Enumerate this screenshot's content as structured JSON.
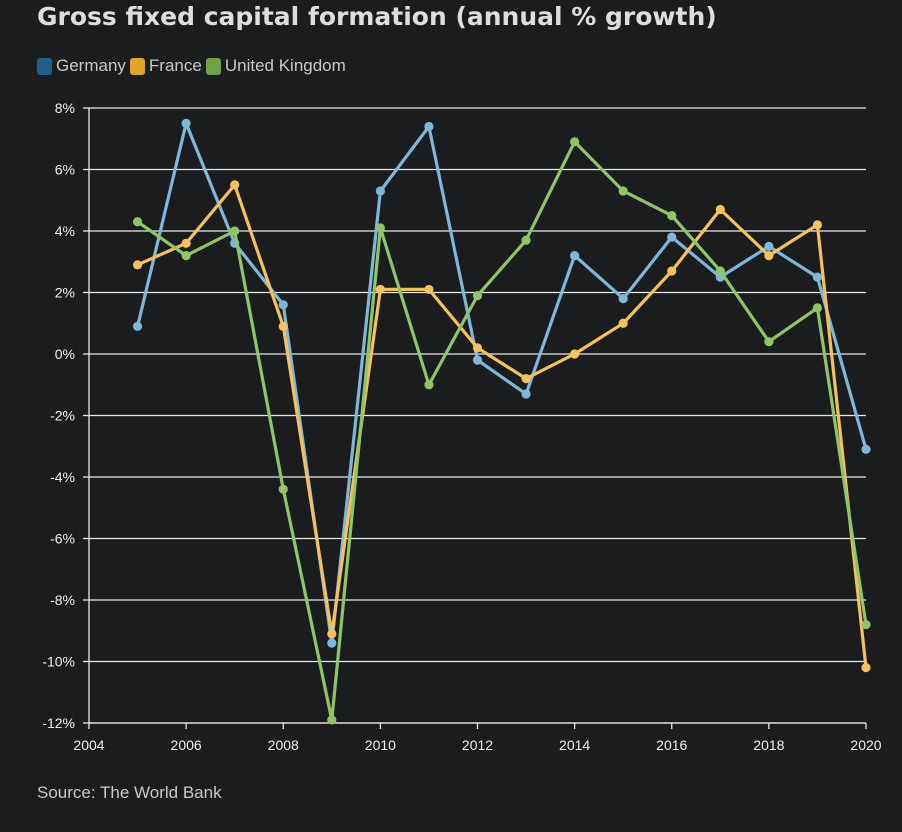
{
  "title": "Gross fixed capital formation (annual % growth)",
  "source": "Source: The World Bank",
  "chart_data": {
    "type": "line",
    "title": "Gross fixed capital formation (annual % growth)",
    "xlabel": "",
    "ylabel": "",
    "xlim": [
      2004,
      2020
    ],
    "ylim": [
      -12,
      8
    ],
    "x_ticks": [
      "2004",
      "2006",
      "2008",
      "2010",
      "2012",
      "2014",
      "2016",
      "2018",
      "2020"
    ],
    "y_ticks": [
      "8%",
      "6%",
      "4%",
      "2%",
      "0%",
      "-2%",
      "-4%",
      "-6%",
      "-8%",
      "-10%",
      "-12%"
    ],
    "grid": true,
    "legend_position": "top-left",
    "x": [
      2005,
      2006,
      2007,
      2008,
      2009,
      2010,
      2011,
      2012,
      2013,
      2014,
      2015,
      2016,
      2017,
      2018,
      2019,
      2020
    ],
    "series": [
      {
        "name": "Germany",
        "legend_color": "#1f5f8b",
        "line_color": "#7db7da",
        "values": [
          0.9,
          7.5,
          3.6,
          1.6,
          -9.4,
          5.3,
          7.4,
          -0.2,
          -1.3,
          3.2,
          1.8,
          3.8,
          2.5,
          3.5,
          2.5,
          -3.1
        ]
      },
      {
        "name": "France",
        "legend_color": "#e0a526",
        "line_color": "#f5c05e",
        "values": [
          2.9,
          3.6,
          5.5,
          0.9,
          -9.1,
          2.1,
          2.1,
          0.2,
          -0.8,
          0.0,
          1.0,
          2.7,
          4.7,
          3.2,
          4.2,
          -10.2
        ]
      },
      {
        "name": "United Kingdom",
        "legend_color": "#6fa04a",
        "line_color": "#8fc567",
        "values": [
          4.3,
          3.2,
          4.0,
          -4.4,
          -11.9,
          4.1,
          -1.0,
          1.9,
          3.7,
          6.9,
          5.3,
          4.5,
          2.7,
          0.4,
          1.5,
          -8.8
        ]
      }
    ]
  }
}
